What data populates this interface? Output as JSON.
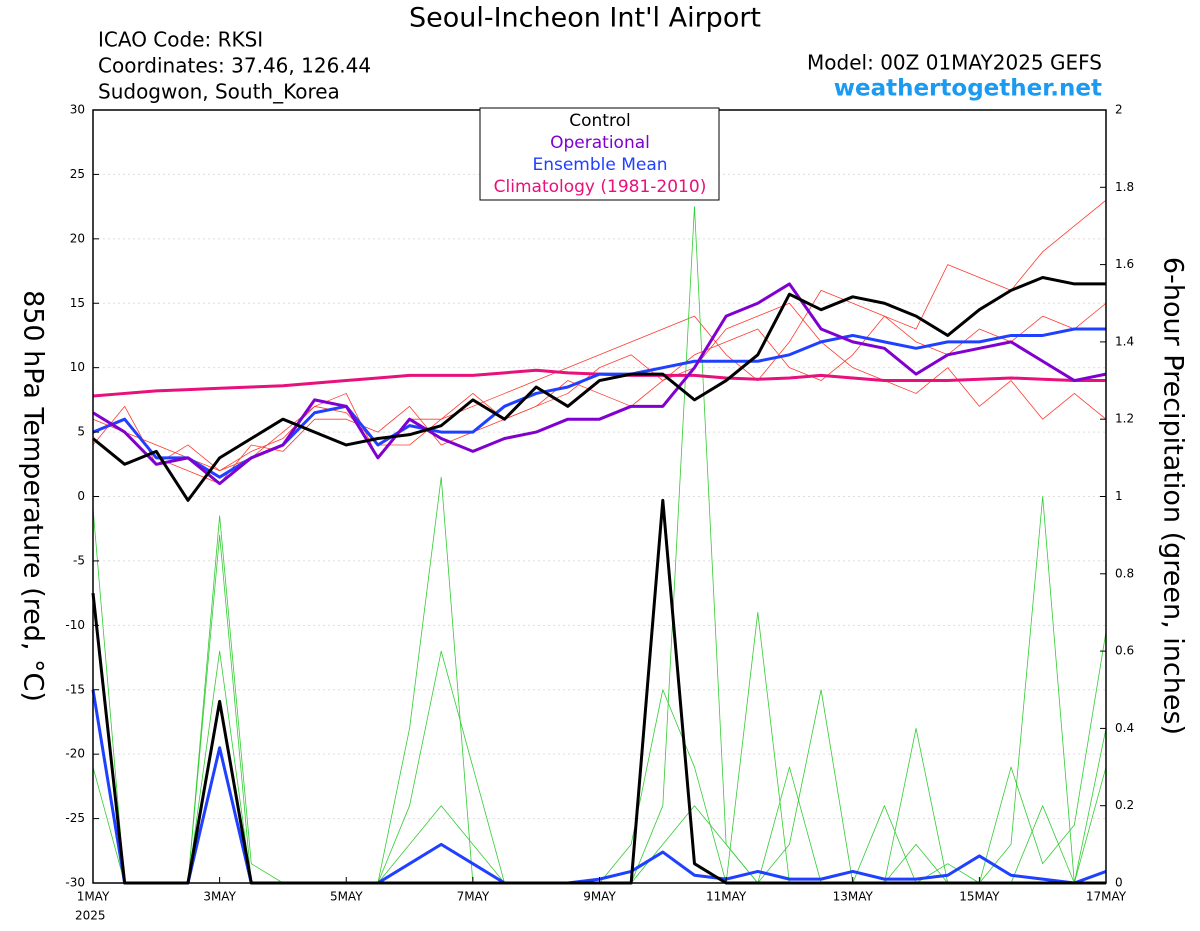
{
  "chart_data": {
    "type": "line",
    "title": "Seoul-Incheon Int'l Airport",
    "info": [
      "ICAO Code: RKSI",
      "Coordinates: 37.46, 126.44",
      "Sudogwon, South_Korea"
    ],
    "model": "Model: 00Z 01MAY2025 GEFS",
    "website": "weathertogether.net",
    "year_label": "2025",
    "ylabel": "850 hPa Temperature (red, °C)",
    "y2label": "6-hour Precipitation (green, inches)",
    "x": [
      0,
      12,
      24,
      36,
      48,
      60,
      72,
      84,
      96,
      108,
      120,
      132,
      144,
      156,
      168,
      180,
      192,
      204,
      216,
      228,
      240,
      252,
      264,
      276,
      288,
      300,
      312,
      324,
      336,
      348,
      360,
      372,
      384
    ],
    "xlim": [
      0,
      384
    ],
    "xticks": [
      {
        "value": 0,
        "label": "1MAY"
      },
      {
        "value": 48,
        "label": "3MAY"
      },
      {
        "value": 96,
        "label": "5MAY"
      },
      {
        "value": 144,
        "label": "7MAY"
      },
      {
        "value": 192,
        "label": "9MAY"
      },
      {
        "value": 240,
        "label": "11MAY"
      },
      {
        "value": 288,
        "label": "13MAY"
      },
      {
        "value": 336,
        "label": "15MAY"
      },
      {
        "value": 384,
        "label": "17MAY"
      }
    ],
    "ylim": [
      -30,
      30
    ],
    "yticks": [
      -30,
      -25,
      -20,
      -15,
      -10,
      -5,
      0,
      5,
      10,
      15,
      20,
      25,
      30
    ],
    "y2lim": [
      0,
      2
    ],
    "y2ticks": [
      0,
      0.2,
      0.4,
      0.6,
      0.8,
      1,
      1.2,
      1.4,
      1.6,
      1.8,
      2
    ],
    "series": [
      {
        "color": "#ff3b30",
        "axis": "y",
        "values": [
          4,
          7,
          2.5,
          4,
          2,
          3.5,
          4.5,
          7,
          8,
          3,
          6,
          6,
          7,
          8,
          9,
          10,
          11,
          12,
          13,
          14,
          11,
          9,
          12,
          16,
          15,
          14,
          13,
          18,
          17,
          16,
          19,
          21,
          23
        ]
      },
      {
        "color": "#ff3b30",
        "axis": "y",
        "values": [
          5,
          6,
          3,
          2,
          1,
          4,
          3.5,
          6,
          6,
          5,
          7,
          4,
          5,
          6,
          7,
          9,
          8,
          7,
          9,
          10,
          13,
          14,
          15,
          12,
          10,
          9,
          8,
          10,
          7,
          9,
          6,
          8,
          6
        ]
      },
      {
        "color": "#ff3b30",
        "axis": "y",
        "values": [
          6,
          5,
          4,
          3,
          2,
          3,
          5,
          7,
          6.5,
          4,
          4,
          6,
          8,
          6,
          7,
          8,
          10,
          11,
          9,
          11,
          12,
          13,
          10,
          9,
          11,
          14,
          12,
          11,
          13,
          12,
          14,
          13,
          15
        ]
      },
      {
        "color": "#33cc33",
        "axis": "y2",
        "values": [
          0.97,
          0,
          0,
          0,
          0.9,
          0,
          0,
          0,
          0,
          0,
          0.2,
          0.6,
          0.3,
          0,
          0,
          0,
          0,
          0,
          0.2,
          1.75,
          0.1,
          0,
          0.3,
          0,
          0,
          0,
          0.4,
          0,
          0,
          0.1,
          1,
          0,
          0.3
        ]
      },
      {
        "color": "#33cc33",
        "axis": "y2",
        "values": [
          0.3,
          0,
          0,
          0,
          0.6,
          0,
          0,
          0,
          0,
          0,
          0.4,
          1.05,
          0,
          0,
          0,
          0,
          0,
          0.1,
          0.5,
          0.3,
          0,
          0.7,
          0,
          0,
          0,
          0.2,
          0,
          0.05,
          0,
          0.3,
          0.05,
          0.15,
          0.65
        ]
      },
      {
        "color": "#33cc33",
        "axis": "y2",
        "values": [
          0.5,
          0,
          0,
          0,
          0.95,
          0.05,
          0,
          0,
          0,
          0,
          0.1,
          0.2,
          0.1,
          0,
          0,
          0,
          0,
          0,
          0.1,
          0.2,
          0.1,
          0,
          0.1,
          0.5,
          0,
          0,
          0.1,
          0,
          0,
          0,
          0.2,
          0,
          0.4
        ]
      },
      {
        "name": "Climatology (1981-2010)",
        "color": "#e8107a",
        "axis": "y",
        "values": [
          7.8,
          8,
          8.2,
          8.3,
          8.4,
          8.5,
          8.6,
          8.8,
          9,
          9.2,
          9.4,
          9.4,
          9.4,
          9.6,
          9.8,
          9.6,
          9.5,
          9.4,
          9.4,
          9.4,
          9.2,
          9.1,
          9.2,
          9.4,
          9.2,
          9,
          9,
          9,
          9.1,
          9.2,
          9.1,
          9,
          9
        ]
      },
      {
        "color": "#2040ff",
        "axis": "y2",
        "values": [
          0.5,
          0,
          0,
          0,
          0.35,
          0,
          0,
          0,
          0,
          0,
          0.05,
          0.1,
          0.05,
          0,
          0,
          0,
          0.01,
          0.03,
          0.08,
          0.02,
          0.01,
          0.03,
          0.01,
          0.01,
          0.03,
          0.01,
          0.01,
          0.02,
          0.07,
          0.02,
          0.01,
          0,
          0.03
        ]
      },
      {
        "color": "#000000",
        "axis": "y2",
        "values": [
          0.75,
          0,
          0,
          0,
          0.47,
          0,
          0,
          0,
          0,
          0,
          0,
          0,
          0,
          0,
          0,
          0,
          0,
          0,
          0.99,
          0.05,
          0,
          0,
          0,
          0,
          0,
          0,
          0,
          0,
          0,
          0,
          0,
          0,
          0
        ]
      },
      {
        "name": "Ensemble Mean",
        "color": "#2040ff",
        "axis": "y",
        "values": [
          5,
          6,
          3,
          3,
          1.5,
          3,
          4,
          6.5,
          7,
          4,
          5.5,
          5,
          5,
          7,
          8,
          8.5,
          9.5,
          9.5,
          10,
          10.5,
          10.5,
          10.5,
          11,
          12,
          12.5,
          12,
          11.5,
          12,
          12,
          12.5,
          12.5,
          13,
          13
        ]
      },
      {
        "name": "Operational",
        "color": "#8000d0",
        "axis": "y",
        "values": [
          6.5,
          5,
          2.5,
          3,
          1,
          3,
          4,
          7.5,
          7,
          3,
          6,
          4.5,
          3.5,
          4.5,
          5,
          6,
          6,
          7,
          7,
          10,
          14,
          15,
          16.5,
          13,
          12,
          11.5,
          9.5,
          11,
          11.5,
          12,
          10.5,
          9,
          9.5
        ]
      },
      {
        "name": "Control",
        "color": "#000000",
        "axis": "y",
        "values": [
          4.5,
          2.5,
          3.5,
          -0.3,
          3,
          4.5,
          6,
          5,
          4,
          4.5,
          4.8,
          5.5,
          7.5,
          6,
          8.5,
          7,
          9,
          9.5,
          9.5,
          7.5,
          9,
          11,
          15.7,
          14.5,
          15.5,
          15,
          14,
          12.5,
          14.5,
          16,
          17,
          16.5,
          16.5
        ]
      }
    ]
  }
}
